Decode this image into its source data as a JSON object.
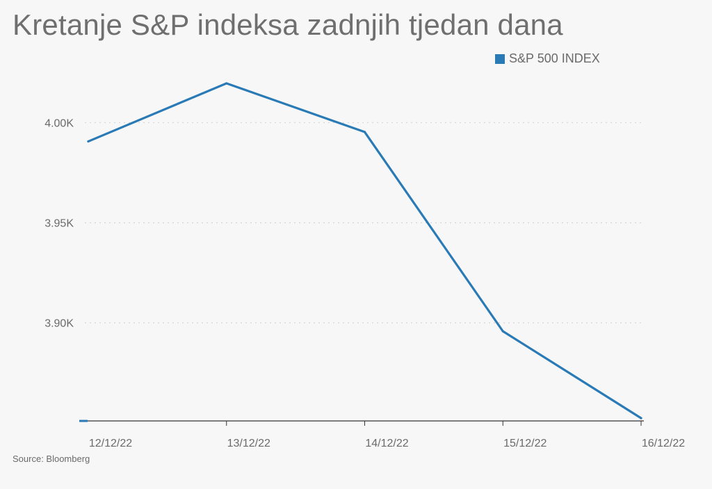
{
  "title": "Kretanje S&P indeksa zadnjih tjedan dana",
  "source": "Source: Bloomberg",
  "legend_label": "S&P 500 INDEX",
  "colors": {
    "series": "#2a7ab6",
    "grid": "#d6d6d6",
    "axis": "#333333",
    "text": "#6a6a6a"
  },
  "chart_data": {
    "type": "line",
    "title": "Kretanje S&P indeksa zadnjih tjedan dana",
    "xlabel": "",
    "ylabel": "",
    "x": [
      "12/12/22",
      "13/12/22",
      "14/12/22",
      "15/12/22",
      "16/12/22"
    ],
    "series": [
      {
        "name": "S&P 500 INDEX",
        "values": [
          3990.6,
          4019.6,
          3995.3,
          3895.8,
          3852.4
        ]
      }
    ],
    "y_ticks": [
      3900,
      3950,
      4000
    ],
    "y_tick_labels": [
      "3.90K",
      "3.95K",
      "4.00K"
    ],
    "ylim": [
      3851,
      4030
    ],
    "grid": true,
    "grid_style": "dotted",
    "legend": "top-right"
  }
}
